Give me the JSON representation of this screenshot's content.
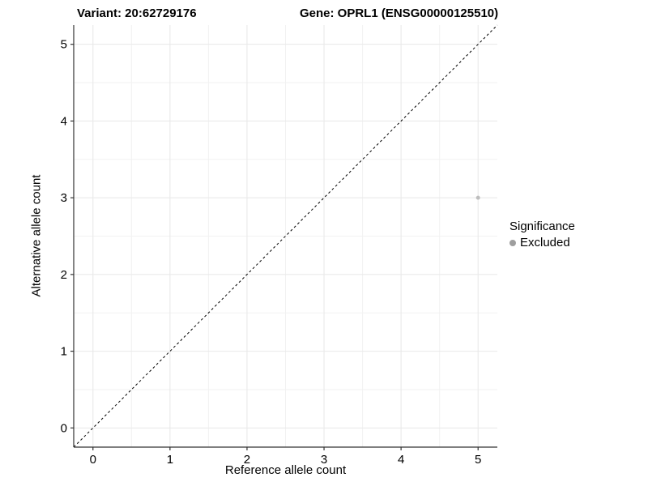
{
  "chart_data": {
    "type": "scatter",
    "title_left": "Variant: 20:62729176",
    "title_right": "Gene: OPRL1 (ENSG00000125510)",
    "xlabel": "Reference allele count",
    "ylabel": "Alternative allele count",
    "xlim": [
      -0.25,
      5.25
    ],
    "ylim": [
      -0.25,
      5.25
    ],
    "x_ticks": [
      0,
      1,
      2,
      3,
      4,
      5
    ],
    "y_ticks": [
      0,
      1,
      2,
      3,
      4,
      5
    ],
    "grid": "major+minor",
    "minor_step": 0.5,
    "points": [
      {
        "x": 5,
        "y": 3,
        "significance": "Excluded",
        "color": "#bebebe",
        "radius": 2.5
      }
    ],
    "reference_line": {
      "style": "dashed",
      "color": "#000000",
      "from": [
        -0.25,
        -0.25
      ],
      "to": [
        5.25,
        5.25
      ]
    },
    "legend": {
      "title": "Significance",
      "position": "right",
      "items": [
        {
          "label": "Excluded",
          "color": "#9e9e9e",
          "marker": "circle"
        }
      ]
    },
    "colors": {
      "background": "#ffffff",
      "grid_major": "#e8e8e8",
      "grid_minor": "#f2f2f2",
      "axis_line": "#333333",
      "tick_mark": "#333333",
      "tick_label": "#000000"
    }
  }
}
